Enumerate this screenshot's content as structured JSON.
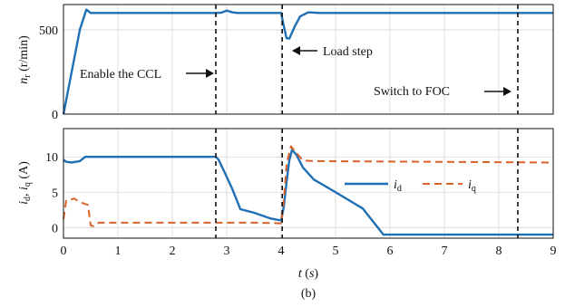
{
  "chart_data": [
    {
      "type": "line",
      "ylabel": "n_r (r/min)",
      "ylim": [
        0,
        650
      ],
      "xlim": [
        0,
        9
      ],
      "yticks": [
        0,
        500
      ],
      "grid": true,
      "series": [
        {
          "name": "n_r",
          "color": "#1f6fb4",
          "points": [
            [
              0,
              0
            ],
            [
              0.3,
              500
            ],
            [
              0.42,
              620
            ],
            [
              0.5,
              600
            ],
            [
              2.8,
              600
            ],
            [
              2.9,
              602
            ],
            [
              3.0,
              614
            ],
            [
              3.1,
              604
            ],
            [
              3.2,
              600
            ],
            [
              4.0,
              600
            ],
            [
              4.05,
              520
            ],
            [
              4.1,
              450
            ],
            [
              4.15,
              448
            ],
            [
              4.25,
              520
            ],
            [
              4.35,
              580
            ],
            [
              4.5,
              604
            ],
            [
              4.7,
              600
            ],
            [
              9,
              600
            ]
          ]
        }
      ],
      "annotations": [
        {
          "text": "Enable the CCL",
          "x": 2.8
        },
        {
          "text": "Load step",
          "x": 4.05
        },
        {
          "text": "Switch to FOC",
          "x": 8.35
        }
      ],
      "vlines": [
        2.8,
        4.02,
        8.35
      ]
    },
    {
      "type": "line",
      "ylabel": "i_d, i_q (A)",
      "xlabel": "t (s)",
      "ylim": [
        -1.5,
        14
      ],
      "xlim": [
        0,
        9
      ],
      "xticks": [
        0,
        1,
        2,
        3,
        4,
        5,
        6,
        7,
        8,
        9
      ],
      "yticks": [
        0,
        5,
        10
      ],
      "grid": true,
      "series": [
        {
          "name": "i_d",
          "color": "#1f6fb4",
          "dash": "solid",
          "points": [
            [
              0,
              9.6
            ],
            [
              0.05,
              9.3
            ],
            [
              0.15,
              9.2
            ],
            [
              0.3,
              9.4
            ],
            [
              0.4,
              10.0
            ],
            [
              2.8,
              10.0
            ],
            [
              2.85,
              9.6
            ],
            [
              2.95,
              8.0
            ],
            [
              3.1,
              5.5
            ],
            [
              3.25,
              2.6
            ],
            [
              3.5,
              2.1
            ],
            [
              3.8,
              1.3
            ],
            [
              4.0,
              1.0
            ],
            [
              4.05,
              3.0
            ],
            [
              4.1,
              6.5
            ],
            [
              4.15,
              9.5
            ],
            [
              4.2,
              11.0
            ],
            [
              4.28,
              10.3
            ],
            [
              4.4,
              8.5
            ],
            [
              4.6,
              6.8
            ],
            [
              5.0,
              5.0
            ],
            [
              5.5,
              2.7
            ],
            [
              5.88,
              -1.0
            ],
            [
              9,
              -1.0
            ]
          ]
        },
        {
          "name": "i_q",
          "color": "#d9622b",
          "dash": "dashed",
          "points": [
            [
              0,
              1.2
            ],
            [
              0.05,
              3.8
            ],
            [
              0.2,
              4.1
            ],
            [
              0.3,
              3.6
            ],
            [
              0.45,
              3.2
            ],
            [
              0.5,
              0.3
            ],
            [
              0.55,
              0.2
            ],
            [
              0.65,
              0.7
            ],
            [
              2.8,
              0.7
            ],
            [
              3.5,
              0.7
            ],
            [
              4.0,
              0.6
            ],
            [
              4.05,
              4.0
            ],
            [
              4.1,
              9.0
            ],
            [
              4.18,
              11.5
            ],
            [
              4.3,
              10.4
            ],
            [
              4.4,
              9.5
            ],
            [
              4.6,
              9.4
            ],
            [
              9,
              9.2
            ]
          ]
        }
      ],
      "vlines": [
        2.8,
        4.02,
        8.35
      ]
    }
  ],
  "caption": "(b)",
  "labels": {
    "top_ann_ccl": "Enable the CCL",
    "top_ann_load": "Load step",
    "top_ann_foc": "Switch to FOC",
    "legend_id": "i_d",
    "legend_iq": "i_q"
  }
}
